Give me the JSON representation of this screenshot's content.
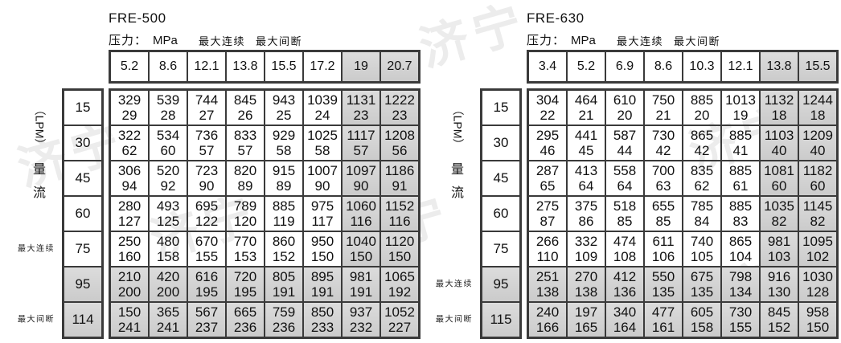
{
  "labels": {
    "pressure_label": "压力：",
    "pressure_unit": "MPa",
    "legend_max_continuous": "最大连续",
    "legend_max_intermittent": "最大间断",
    "annotation_max_continuous": "最大连续",
    "annotation_max_intermittent": "最大间断",
    "flow_axis": {
      "unit": "（LPM）",
      "char_top": "量",
      "char_bottom": "流"
    }
  },
  "watermark": {
    "text": "济宁",
    "color": "#ececec"
  },
  "colors": {
    "shaded_cell": "#d2d2d2",
    "grid_border": "#3a3a3a",
    "text": "#111111"
  },
  "tables": [
    {
      "title": "FRE-500",
      "pressures": [
        "5.2",
        "8.6",
        "12.1",
        "13.8",
        "15.5",
        "17.2",
        "19",
        "20.7"
      ],
      "shaded_pressure_columns": [
        6,
        7
      ],
      "flows": [
        "15",
        "30",
        "45",
        "60",
        "75",
        "95",
        "114"
      ],
      "shaded_flow_rows": [
        5,
        6
      ],
      "max_continuous_row": 4,
      "max_intermittent_row": 6,
      "cells": [
        [
          [
            329,
            29
          ],
          [
            539,
            28
          ],
          [
            744,
            27
          ],
          [
            845,
            26
          ],
          [
            943,
            25
          ],
          [
            1039,
            24
          ],
          [
            1131,
            23
          ],
          [
            1222,
            23
          ]
        ],
        [
          [
            322,
            62
          ],
          [
            534,
            60
          ],
          [
            736,
            57
          ],
          [
            833,
            57
          ],
          [
            929,
            58
          ],
          [
            1025,
            58
          ],
          [
            1117,
            57
          ],
          [
            1208,
            56
          ]
        ],
        [
          [
            306,
            94
          ],
          [
            520,
            92
          ],
          [
            723,
            90
          ],
          [
            820,
            89
          ],
          [
            915,
            89
          ],
          [
            1007,
            90
          ],
          [
            1097,
            90
          ],
          [
            1186,
            91
          ]
        ],
        [
          [
            280,
            127
          ],
          [
            493,
            125
          ],
          [
            695,
            122
          ],
          [
            789,
            120
          ],
          [
            885,
            119
          ],
          [
            975,
            117
          ],
          [
            1060,
            116
          ],
          [
            1152,
            116
          ]
        ],
        [
          [
            250,
            160
          ],
          [
            480,
            158
          ],
          [
            670,
            155
          ],
          [
            770,
            153
          ],
          [
            860,
            152
          ],
          [
            950,
            150
          ],
          [
            1040,
            150
          ],
          [
            1120,
            150
          ]
        ],
        [
          [
            210,
            200
          ],
          [
            420,
            200
          ],
          [
            616,
            195
          ],
          [
            720,
            195
          ],
          [
            805,
            191
          ],
          [
            895,
            191
          ],
          [
            981,
            191
          ],
          [
            1065,
            192
          ]
        ],
        [
          [
            150,
            241
          ],
          [
            365,
            241
          ],
          [
            567,
            237
          ],
          [
            665,
            236
          ],
          [
            759,
            236
          ],
          [
            850,
            233
          ],
          [
            937,
            232
          ],
          [
            1052,
            227
          ]
        ]
      ]
    },
    {
      "title": "FRE-630",
      "pressures": [
        "3.4",
        "5.2",
        "6.9",
        "8.6",
        "10.3",
        "12.1",
        "13.8",
        "15.5"
      ],
      "shaded_pressure_columns": [
        6,
        7
      ],
      "flows": [
        "15",
        "30",
        "45",
        "60",
        "75",
        "95",
        "115"
      ],
      "shaded_flow_rows": [
        5,
        6
      ],
      "max_continuous_row": 5,
      "max_intermittent_row": 6,
      "cells": [
        [
          [
            304,
            22
          ],
          [
            464,
            21
          ],
          [
            610,
            20
          ],
          [
            750,
            21
          ],
          [
            885,
            20
          ],
          [
            1013,
            19
          ],
          [
            1132,
            18
          ],
          [
            1244,
            18
          ]
        ],
        [
          [
            295,
            46
          ],
          [
            441,
            45
          ],
          [
            587,
            44
          ],
          [
            730,
            42
          ],
          [
            865,
            42
          ],
          [
            885,
            41
          ],
          [
            1103,
            40
          ],
          [
            1209,
            40
          ]
        ],
        [
          [
            287,
            65
          ],
          [
            413,
            64
          ],
          [
            558,
            64
          ],
          [
            700,
            63
          ],
          [
            835,
            62
          ],
          [
            885,
            61
          ],
          [
            1081,
            60
          ],
          [
            1182,
            60
          ]
        ],
        [
          [
            275,
            87
          ],
          [
            375,
            86
          ],
          [
            518,
            85
          ],
          [
            655,
            85
          ],
          [
            785,
            84
          ],
          [
            885,
            83
          ],
          [
            1035,
            82
          ],
          [
            1145,
            82
          ]
        ],
        [
          [
            266,
            110
          ],
          [
            332,
            109
          ],
          [
            474,
            108
          ],
          [
            611,
            106
          ],
          [
            740,
            105
          ],
          [
            865,
            104
          ],
          [
            981,
            103
          ],
          [
            1095,
            102
          ]
        ],
        [
          [
            251,
            138
          ],
          [
            270,
            138
          ],
          [
            412,
            136
          ],
          [
            550,
            135
          ],
          [
            675,
            135
          ],
          [
            798,
            134
          ],
          [
            916,
            130
          ],
          [
            1030,
            128
          ]
        ],
        [
          [
            240,
            166
          ],
          [
            197,
            165
          ],
          [
            340,
            164
          ],
          [
            477,
            161
          ],
          [
            605,
            158
          ],
          [
            730,
            155
          ],
          [
            845,
            152
          ],
          [
            958,
            150
          ]
        ]
      ]
    }
  ]
}
